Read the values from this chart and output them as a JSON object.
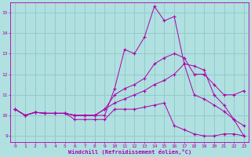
{
  "background_color": "#b0e0e0",
  "grid_color": "#90c8c8",
  "line_color": "#aa00aa",
  "xlabel": "Windchill (Refroidissement éolien,°C)",
  "xlim": [
    -0.5,
    23.5
  ],
  "ylim": [
    8.7,
    15.5
  ],
  "yticks": [
    9,
    10,
    11,
    12,
    13,
    14,
    15
  ],
  "xticks": [
    0,
    1,
    2,
    3,
    4,
    5,
    6,
    7,
    8,
    9,
    10,
    11,
    12,
    13,
    14,
    15,
    16,
    17,
    18,
    19,
    20,
    21,
    22,
    23
  ],
  "curves": [
    {
      "x": [
        0,
        1,
        2,
        3,
        4,
        5,
        6,
        7,
        8,
        9,
        10,
        11,
        12,
        13,
        14,
        15,
        16,
        17,
        18,
        19,
        20,
        21,
        22,
        23
      ],
      "y": [
        10.3,
        10.0,
        10.15,
        10.1,
        10.1,
        10.1,
        9.8,
        9.8,
        9.8,
        9.8,
        10.3,
        10.3,
        10.3,
        10.4,
        10.5,
        10.6,
        9.5,
        9.3,
        9.1,
        9.0,
        9.0,
        9.1,
        9.1,
        9.0
      ]
    },
    {
      "x": [
        0,
        1,
        2,
        3,
        4,
        5,
        6,
        7,
        8,
        9,
        10,
        11,
        12,
        13,
        14,
        15,
        16,
        17,
        18,
        19,
        20,
        21,
        22,
        23
      ],
      "y": [
        10.3,
        10.0,
        10.15,
        10.1,
        10.1,
        10.1,
        10.0,
        10.0,
        10.0,
        10.0,
        11.3,
        13.2,
        13.0,
        13.8,
        15.3,
        14.6,
        14.8,
        12.5,
        11.0,
        10.8,
        10.5,
        10.2,
        9.8,
        9.0
      ]
    },
    {
      "x": [
        0,
        1,
        2,
        3,
        4,
        5,
        6,
        7,
        8,
        9,
        10,
        11,
        12,
        13,
        14,
        15,
        16,
        17,
        18,
        19,
        20,
        21,
        22,
        23
      ],
      "y": [
        10.3,
        10.0,
        10.15,
        10.1,
        10.1,
        10.1,
        10.0,
        10.0,
        10.0,
        10.3,
        11.0,
        11.3,
        11.5,
        11.8,
        12.5,
        12.8,
        13.0,
        12.8,
        12.0,
        12.0,
        11.5,
        11.0,
        11.0,
        11.2
      ]
    },
    {
      "x": [
        0,
        1,
        2,
        3,
        4,
        5,
        6,
        7,
        8,
        9,
        10,
        11,
        12,
        13,
        14,
        15,
        16,
        17,
        18,
        19,
        20,
        21,
        22,
        23
      ],
      "y": [
        10.3,
        10.0,
        10.15,
        10.1,
        10.1,
        10.1,
        10.0,
        10.0,
        10.0,
        10.3,
        10.6,
        10.8,
        11.0,
        11.2,
        11.5,
        11.7,
        12.0,
        12.5,
        12.4,
        12.2,
        11.0,
        10.5,
        9.8,
        9.5
      ]
    }
  ]
}
